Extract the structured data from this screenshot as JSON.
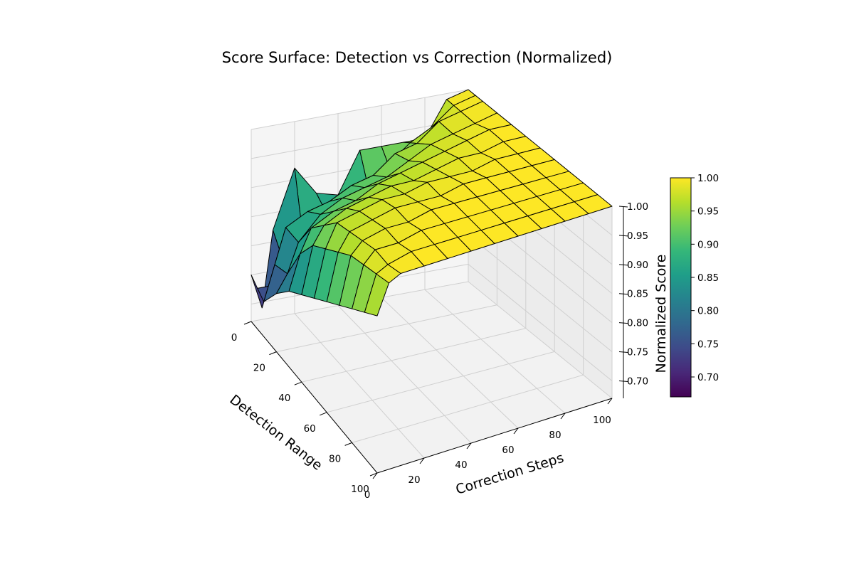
{
  "chart_data": {
    "type": "surface3d",
    "title": "Score Surface: Detection vs Correction (Normalized)",
    "xlabel": "Detection Range",
    "ylabel": "Correction Steps",
    "zlabel": "Normalized Score",
    "x_ticks": [
      "0",
      "20",
      "40",
      "60",
      "80",
      "100"
    ],
    "y_ticks": [
      "0",
      "20",
      "40",
      "60",
      "80",
      "100"
    ],
    "z_ticks": [
      "0.70",
      "0.75",
      "0.80",
      "0.85",
      "0.90",
      "0.95",
      "1.00"
    ],
    "colorbar_ticks": [
      "0.70",
      "0.75",
      "0.80",
      "0.85",
      "0.90",
      "0.95",
      "1.00"
    ],
    "xlim": [
      0,
      100
    ],
    "ylim": [
      0,
      100
    ],
    "zlim": [
      0.67,
      1.0
    ],
    "clim": [
      0.67,
      1.0
    ],
    "colormap": "viridis",
    "colormap_stops": [
      "#440154",
      "#482878",
      "#3e4a89",
      "#31688e",
      "#26828e",
      "#1f9e89",
      "#35b779",
      "#6ece58",
      "#b5de2b",
      "#fde725"
    ],
    "edge_color": "#000000",
    "grid": true,
    "x_values": [
      0,
      5,
      10,
      20,
      30,
      40,
      50,
      60,
      70,
      80,
      90,
      100
    ],
    "y_values": [
      0,
      5,
      10,
      20,
      30,
      40,
      50,
      60,
      70,
      80,
      90,
      100
    ],
    "z_values": [
      [
        0.75,
        0.69,
        0.82,
        0.92,
        0.87,
        0.86,
        0.93,
        0.93,
        0.93,
        0.93,
        0.99,
        1.0
      ],
      [
        0.74,
        0.74,
        0.8,
        0.84,
        0.86,
        0.87,
        0.89,
        0.91,
        0.94,
        0.96,
        0.99,
        1.0
      ],
      [
        0.73,
        0.79,
        0.85,
        0.87,
        0.88,
        0.9,
        0.91,
        0.94,
        0.95,
        0.98,
        0.99,
        1.0
      ],
      [
        0.77,
        0.8,
        0.85,
        0.89,
        0.91,
        0.92,
        0.93,
        0.95,
        0.97,
        0.98,
        0.99,
        1.0
      ],
      [
        0.8,
        0.86,
        0.9,
        0.92,
        0.93,
        0.95,
        0.96,
        0.97,
        0.98,
        0.99,
        1.0,
        1.0
      ],
      [
        0.82,
        0.9,
        0.93,
        0.95,
        0.96,
        0.97,
        0.97,
        0.98,
        0.99,
        0.99,
        1.0,
        1.0
      ],
      [
        0.84,
        0.92,
        0.96,
        0.97,
        0.98,
        0.98,
        0.99,
        0.99,
        0.99,
        1.0,
        1.0,
        1.0
      ],
      [
        0.86,
        0.94,
        0.97,
        0.98,
        0.99,
        0.99,
        0.99,
        1.0,
        1.0,
        1.0,
        1.0,
        1.0
      ],
      [
        0.88,
        0.96,
        0.98,
        0.99,
        0.99,
        1.0,
        1.0,
        1.0,
        1.0,
        1.0,
        1.0,
        1.0
      ],
      [
        0.9,
        0.97,
        0.99,
        0.99,
        1.0,
        1.0,
        1.0,
        1.0,
        1.0,
        1.0,
        1.0,
        1.0
      ],
      [
        0.92,
        0.98,
        0.99,
        1.0,
        1.0,
        1.0,
        1.0,
        1.0,
        1.0,
        1.0,
        1.0,
        1.0
      ],
      [
        0.94,
        0.99,
        1.0,
        1.0,
        1.0,
        1.0,
        1.0,
        1.0,
        1.0,
        1.0,
        1.0,
        1.0
      ]
    ]
  }
}
